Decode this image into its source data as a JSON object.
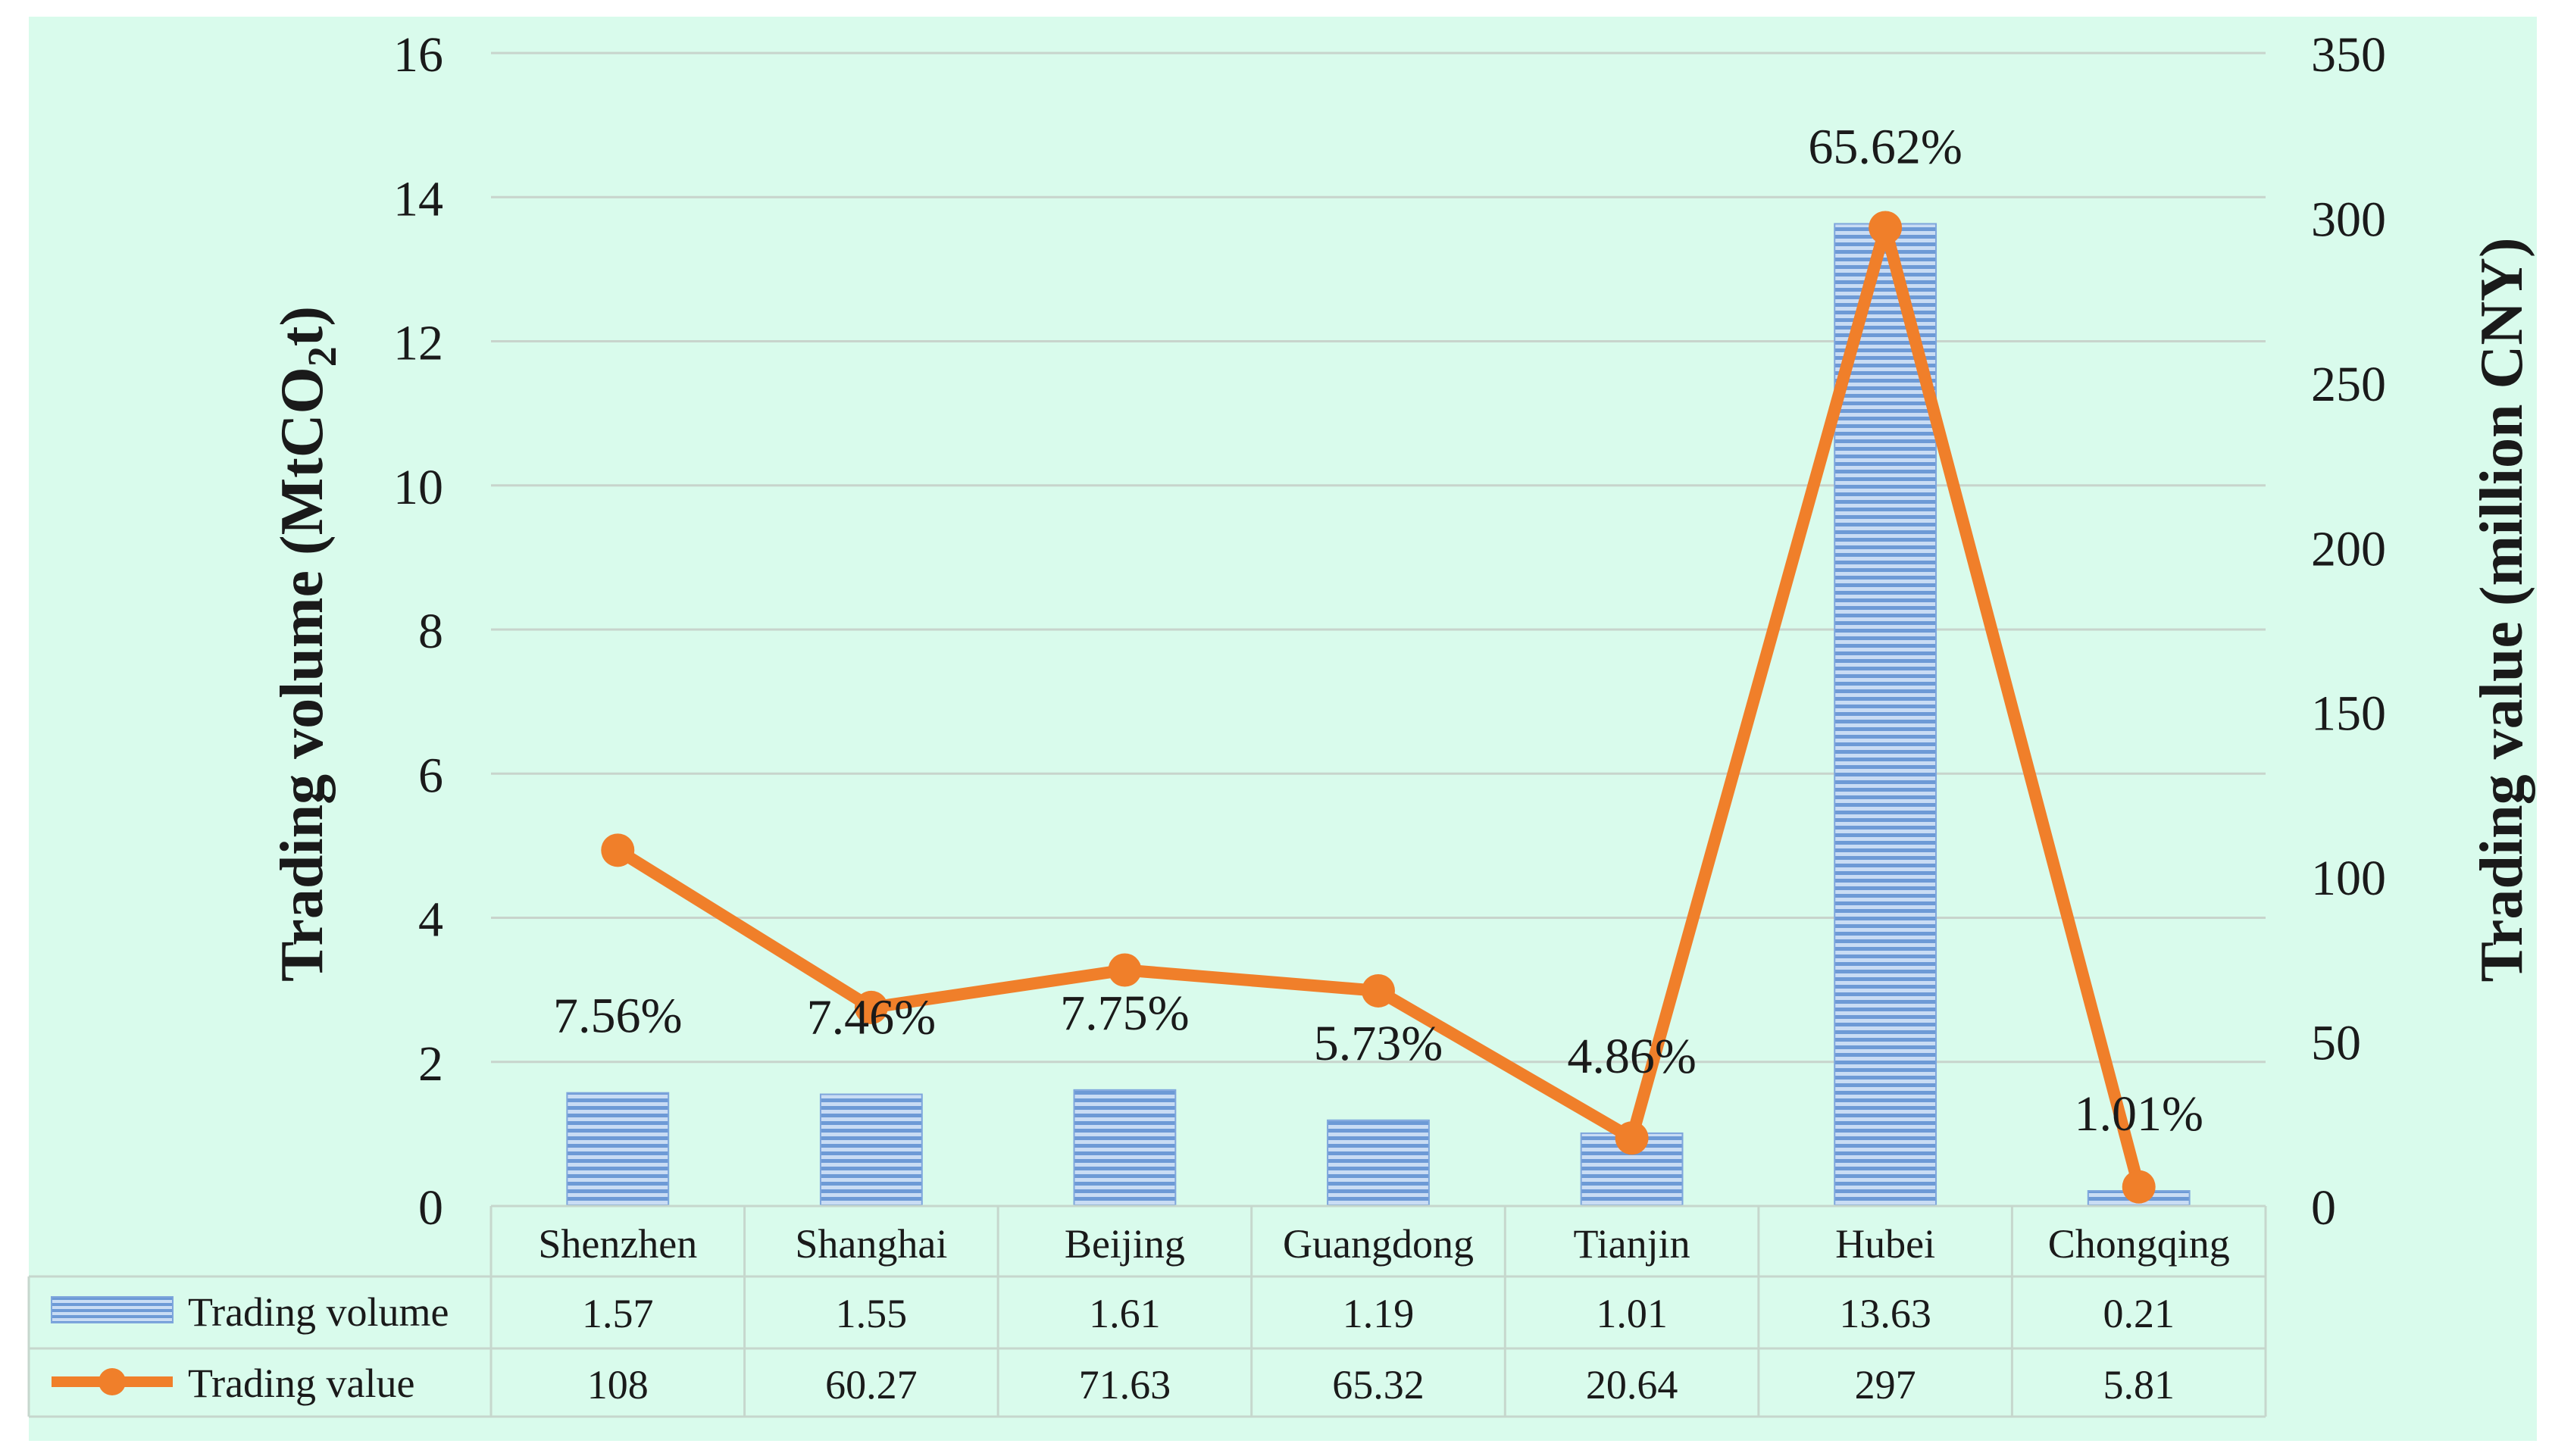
{
  "chart_data": {
    "type": "bar",
    "categories": [
      "Shenzhen",
      "Shanghai",
      "Beijing",
      "Guangdong",
      "Tianjin",
      "Hubei",
      "Chongqing"
    ],
    "series": [
      {
        "name": "Trading volume",
        "type": "bar",
        "axis": "left",
        "values": [
          1.57,
          1.55,
          1.61,
          1.19,
          1.01,
          13.63,
          0.21
        ],
        "color": "#8fb4e3"
      },
      {
        "name": "Trading value",
        "type": "line",
        "axis": "right",
        "values": [
          108,
          60.27,
          71.63,
          65.32,
          20.64,
          297,
          5.81
        ],
        "color": "#f07f2a"
      }
    ],
    "bar_labels": [
      "7.56%",
      "7.46%",
      "7.75%",
      "5.73%",
      "4.86%",
      "65.62%",
      "1.01%"
    ],
    "table_values": {
      "volume": [
        "1.57",
        "1.55",
        "1.61",
        "1.19",
        "1.01",
        "13.63",
        "0.21"
      ],
      "value": [
        "108",
        "60.27",
        "71.63",
        "65.32",
        "20.64",
        "297",
        "5.81"
      ]
    },
    "ylabel_left_main": "Trading volume (MtCO",
    "ylabel_left_sub": "2",
    "ylabel_left_end": "t)",
    "ylabel_right": "Trading value (million CNY)",
    "ylim_left": [
      0,
      16
    ],
    "ylim_right": [
      0,
      350
    ],
    "yticks_left": [
      "0",
      "2",
      "4",
      "6",
      "8",
      "10",
      "12",
      "14",
      "16"
    ],
    "yticks_right": [
      "0",
      "50",
      "100",
      "150",
      "200",
      "250",
      "300",
      "350"
    ],
    "grid": true,
    "background_color": "#d9fbec",
    "legend_placement": "data-table"
  }
}
